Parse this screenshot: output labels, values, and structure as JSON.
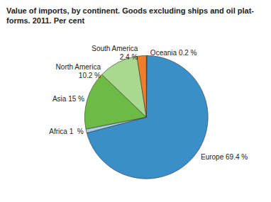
{
  "chart_data": {
    "type": "pie",
    "title": "Value of imports, by continent. Goods excluding ships and oil plat-\nforms. 2011. Per cent",
    "categories": [
      "Oceania",
      "Europe",
      "Africa",
      "Asia",
      "North America",
      "South America"
    ],
    "values": [
      0.2,
      69.4,
      1,
      15,
      10.2,
      2.4
    ],
    "value_labels": [
      "Oceania 0.2 %",
      "Europe 69.4 %",
      "Africa 1  %",
      "Asia 15 %",
      "North America\n10.2 %",
      "South America\n2.4 %"
    ],
    "colors": [
      "#1f4f7d",
      "#3a8fc8",
      "#a6cfe6",
      "#6dbb45",
      "#a8d98f",
      "#f07d2a"
    ],
    "data_labels": true,
    "legend": false
  }
}
